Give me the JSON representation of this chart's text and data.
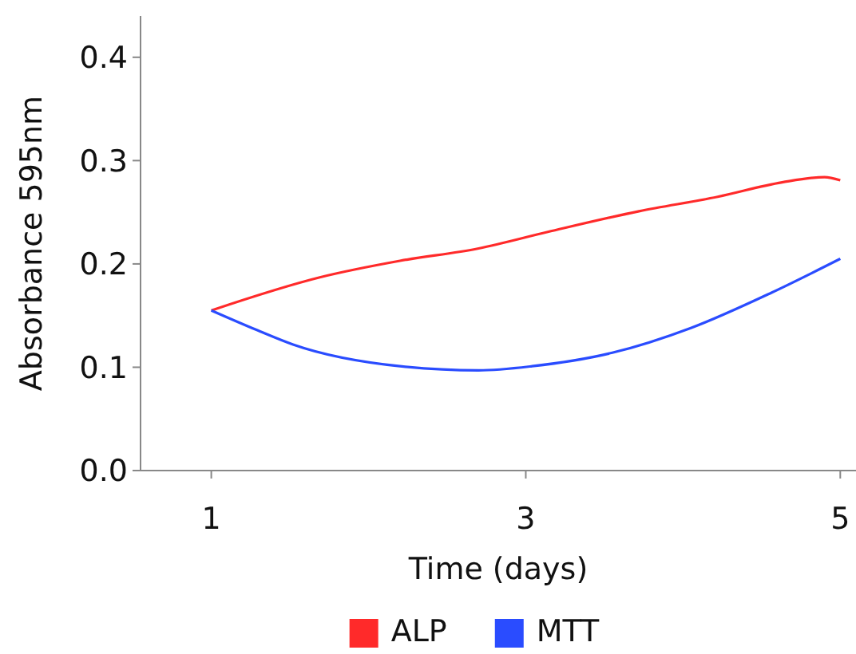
{
  "chart_data": {
    "type": "line",
    "xlabel": "Time (days)",
    "ylabel": "Absorbance  595nm",
    "xlim": [
      0.55,
      5.1
    ],
    "ylim": [
      0,
      0.44
    ],
    "xticks": [
      1,
      3,
      5
    ],
    "yticks": [
      {
        "value": 0,
        "label": "0.0"
      },
      0.1,
      0.2,
      0.3,
      0.4
    ],
    "grid": false,
    "legend": "bottom",
    "marker": "none",
    "line_style": "solid",
    "series": [
      {
        "name": "ALP",
        "color": "#ff2a2a",
        "x": [
          1,
          1.69,
          2.2,
          2.7,
          3.14,
          3.72,
          4.22,
          4.63,
          4.9,
          5
        ],
        "values": [
          0.155,
          0.187,
          0.203,
          0.215,
          0.231,
          0.251,
          0.265,
          0.279,
          0.284,
          0.281
        ]
      },
      {
        "name": "MTT",
        "color": "#2a4cff",
        "x": [
          1,
          1.29,
          1.52,
          2.2,
          2.7,
          3.04,
          3.55,
          4.05,
          4.56,
          5
        ],
        "values": [
          0.155,
          0.136,
          0.122,
          0.101,
          0.097,
          0.101,
          0.114,
          0.138,
          0.172,
          0.205
        ]
      }
    ]
  }
}
